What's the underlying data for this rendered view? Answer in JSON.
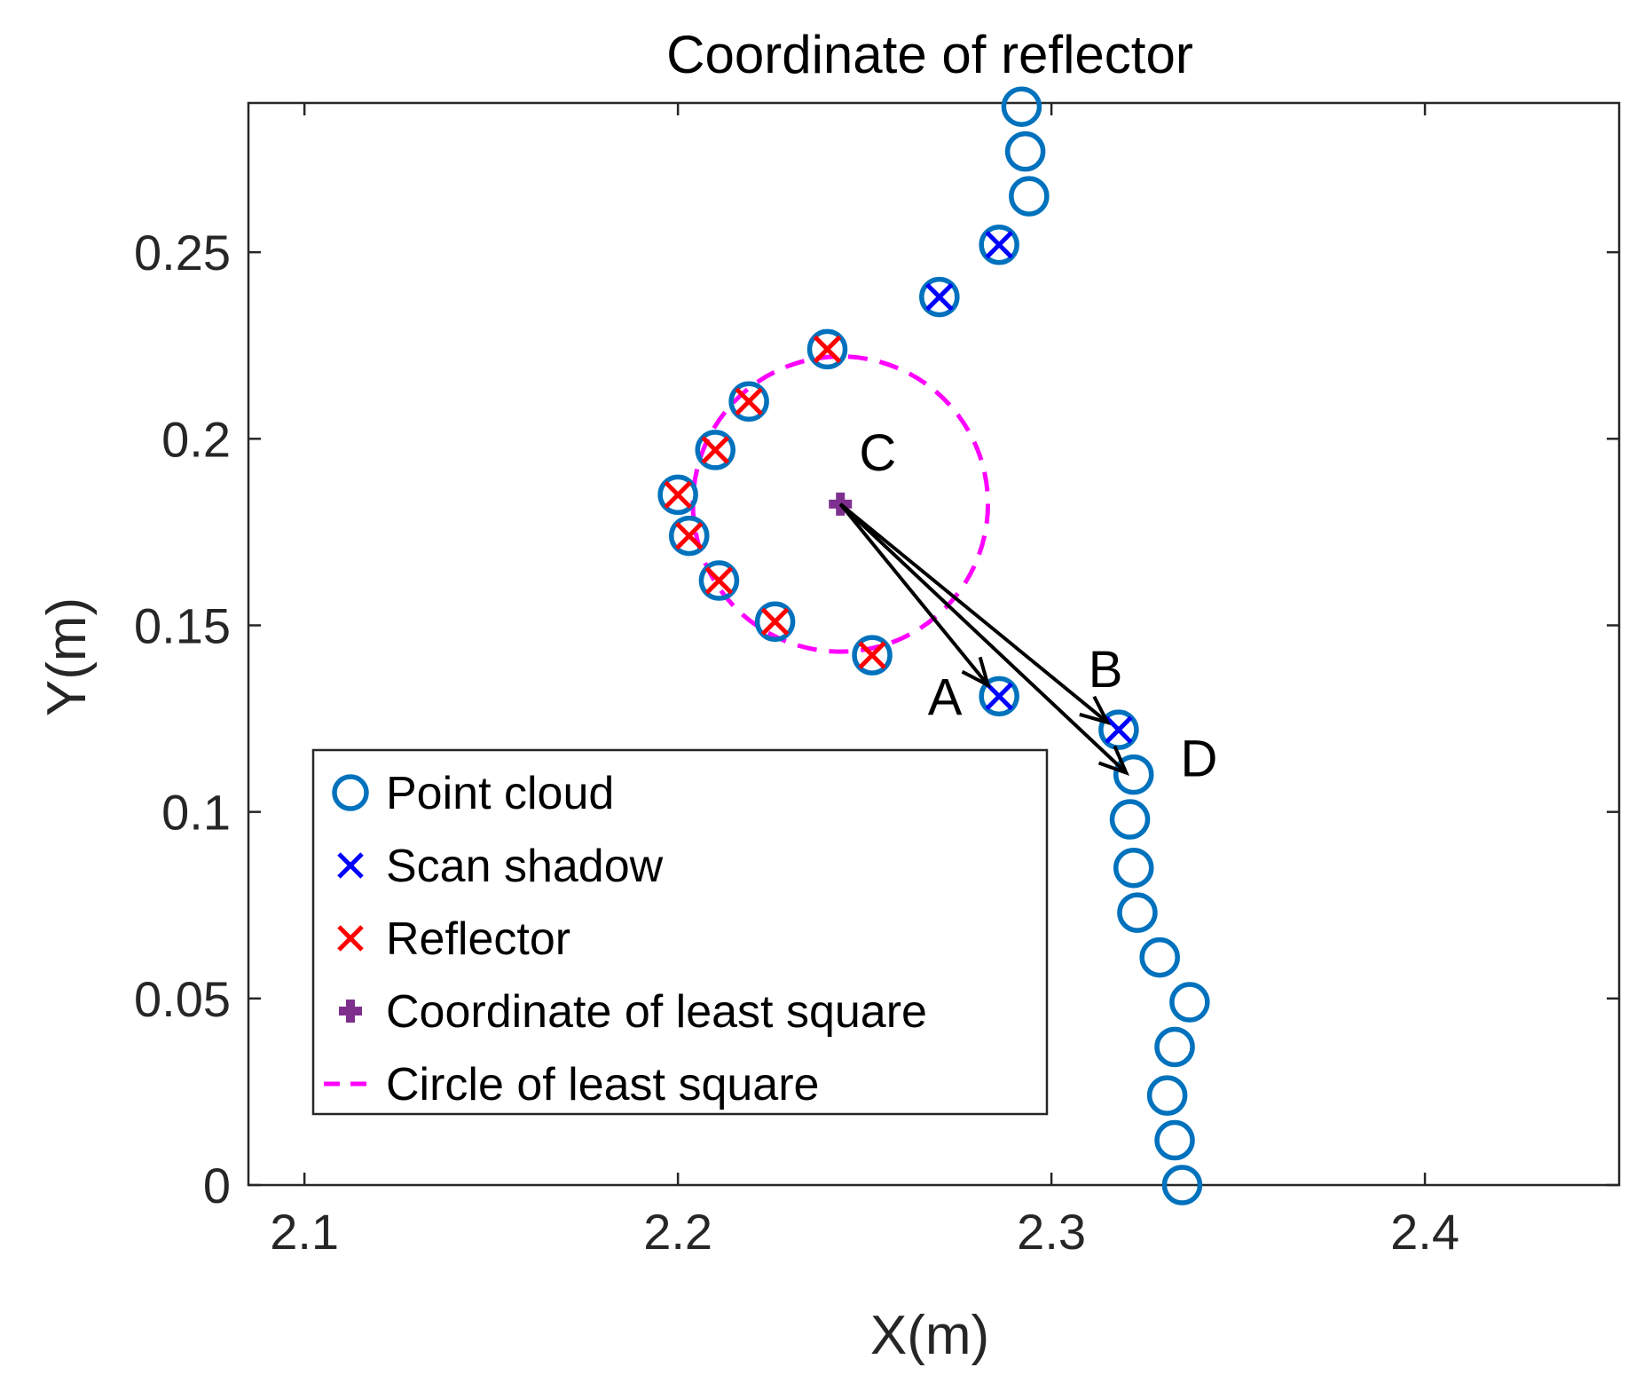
{
  "chart_data": {
    "type": "scatter",
    "title": "Coordinate of reflector",
    "xlabel": "X(m)",
    "ylabel": "Y(m)",
    "xlim": [
      2.085,
      2.452
    ],
    "ylim": [
      0,
      0.29
    ],
    "xticks": [
      2.1,
      2.2,
      2.3,
      2.4
    ],
    "xtick_labels": [
      "2.1",
      "2.2",
      "2.3",
      "2.4"
    ],
    "yticks": [
      0,
      0.05,
      0.1,
      0.15,
      0.2,
      0.25
    ],
    "ytick_labels": [
      "0",
      "0.05",
      "0.1",
      "0.15",
      "0.2",
      "0.25"
    ],
    "grid": false,
    "legend_position": "lower-left",
    "series": [
      {
        "name": "Point cloud",
        "marker": "circle",
        "color": "#0072BD",
        "points": [
          [
            2.292,
            0.289
          ],
          [
            2.293,
            0.277
          ],
          [
            2.294,
            0.265
          ],
          [
            2.286,
            0.252
          ],
          [
            2.27,
            0.238
          ],
          [
            2.24,
            0.224
          ],
          [
            2.219,
            0.21
          ],
          [
            2.21,
            0.197
          ],
          [
            2.2,
            0.185
          ],
          [
            2.203,
            0.174
          ],
          [
            2.211,
            0.162
          ],
          [
            2.226,
            0.151
          ],
          [
            2.252,
            0.142
          ],
          [
            2.286,
            0.131
          ],
          [
            2.318,
            0.122
          ],
          [
            2.322,
            0.11
          ],
          [
            2.321,
            0.098
          ],
          [
            2.322,
            0.085
          ],
          [
            2.323,
            0.073
          ],
          [
            2.329,
            0.061
          ],
          [
            2.337,
            0.049
          ],
          [
            2.333,
            0.037
          ],
          [
            2.331,
            0.024
          ],
          [
            2.333,
            0.012
          ],
          [
            2.335,
            0.0
          ]
        ]
      },
      {
        "name": "Scan shadow",
        "marker": "x",
        "color": "#0000FF",
        "points": [
          [
            2.286,
            0.252
          ],
          [
            2.27,
            0.238
          ],
          [
            2.286,
            0.131
          ],
          [
            2.318,
            0.122
          ]
        ]
      },
      {
        "name": "Reflector",
        "marker": "x",
        "color": "#FF0000",
        "points": [
          [
            2.24,
            0.224
          ],
          [
            2.219,
            0.21
          ],
          [
            2.21,
            0.197
          ],
          [
            2.2,
            0.185
          ],
          [
            2.203,
            0.174
          ],
          [
            2.211,
            0.162
          ],
          [
            2.226,
            0.151
          ],
          [
            2.252,
            0.142
          ]
        ]
      },
      {
        "name": "Coordinate of least square",
        "marker": "plus",
        "color": "#7E2F8E",
        "points": [
          [
            2.2435,
            0.1825
          ]
        ]
      },
      {
        "name": "Circle of least square",
        "type": "circle",
        "style": "dashed",
        "color": "#FF00FF",
        "center": [
          2.2435,
          0.1825
        ],
        "radius": 0.0395
      }
    ],
    "annotations": [
      {
        "text": "C",
        "x": 2.2535,
        "y": 0.1915
      },
      {
        "text": "A",
        "x": 2.2715,
        "y": 0.126
      },
      {
        "text": "B",
        "x": 2.3145,
        "y": 0.1335
      },
      {
        "text": "D",
        "x": 2.3395,
        "y": 0.1095
      }
    ],
    "arrows": [
      {
        "from": [
          2.2435,
          0.1825
        ],
        "to": [
          2.283,
          0.134
        ],
        "label": "A"
      },
      {
        "from": [
          2.2435,
          0.1825
        ],
        "to": [
          2.315,
          0.124
        ],
        "label": "B"
      },
      {
        "from": [
          2.2435,
          0.1825
        ],
        "to": [
          2.32,
          0.1105
        ],
        "label": "D"
      }
    ]
  }
}
